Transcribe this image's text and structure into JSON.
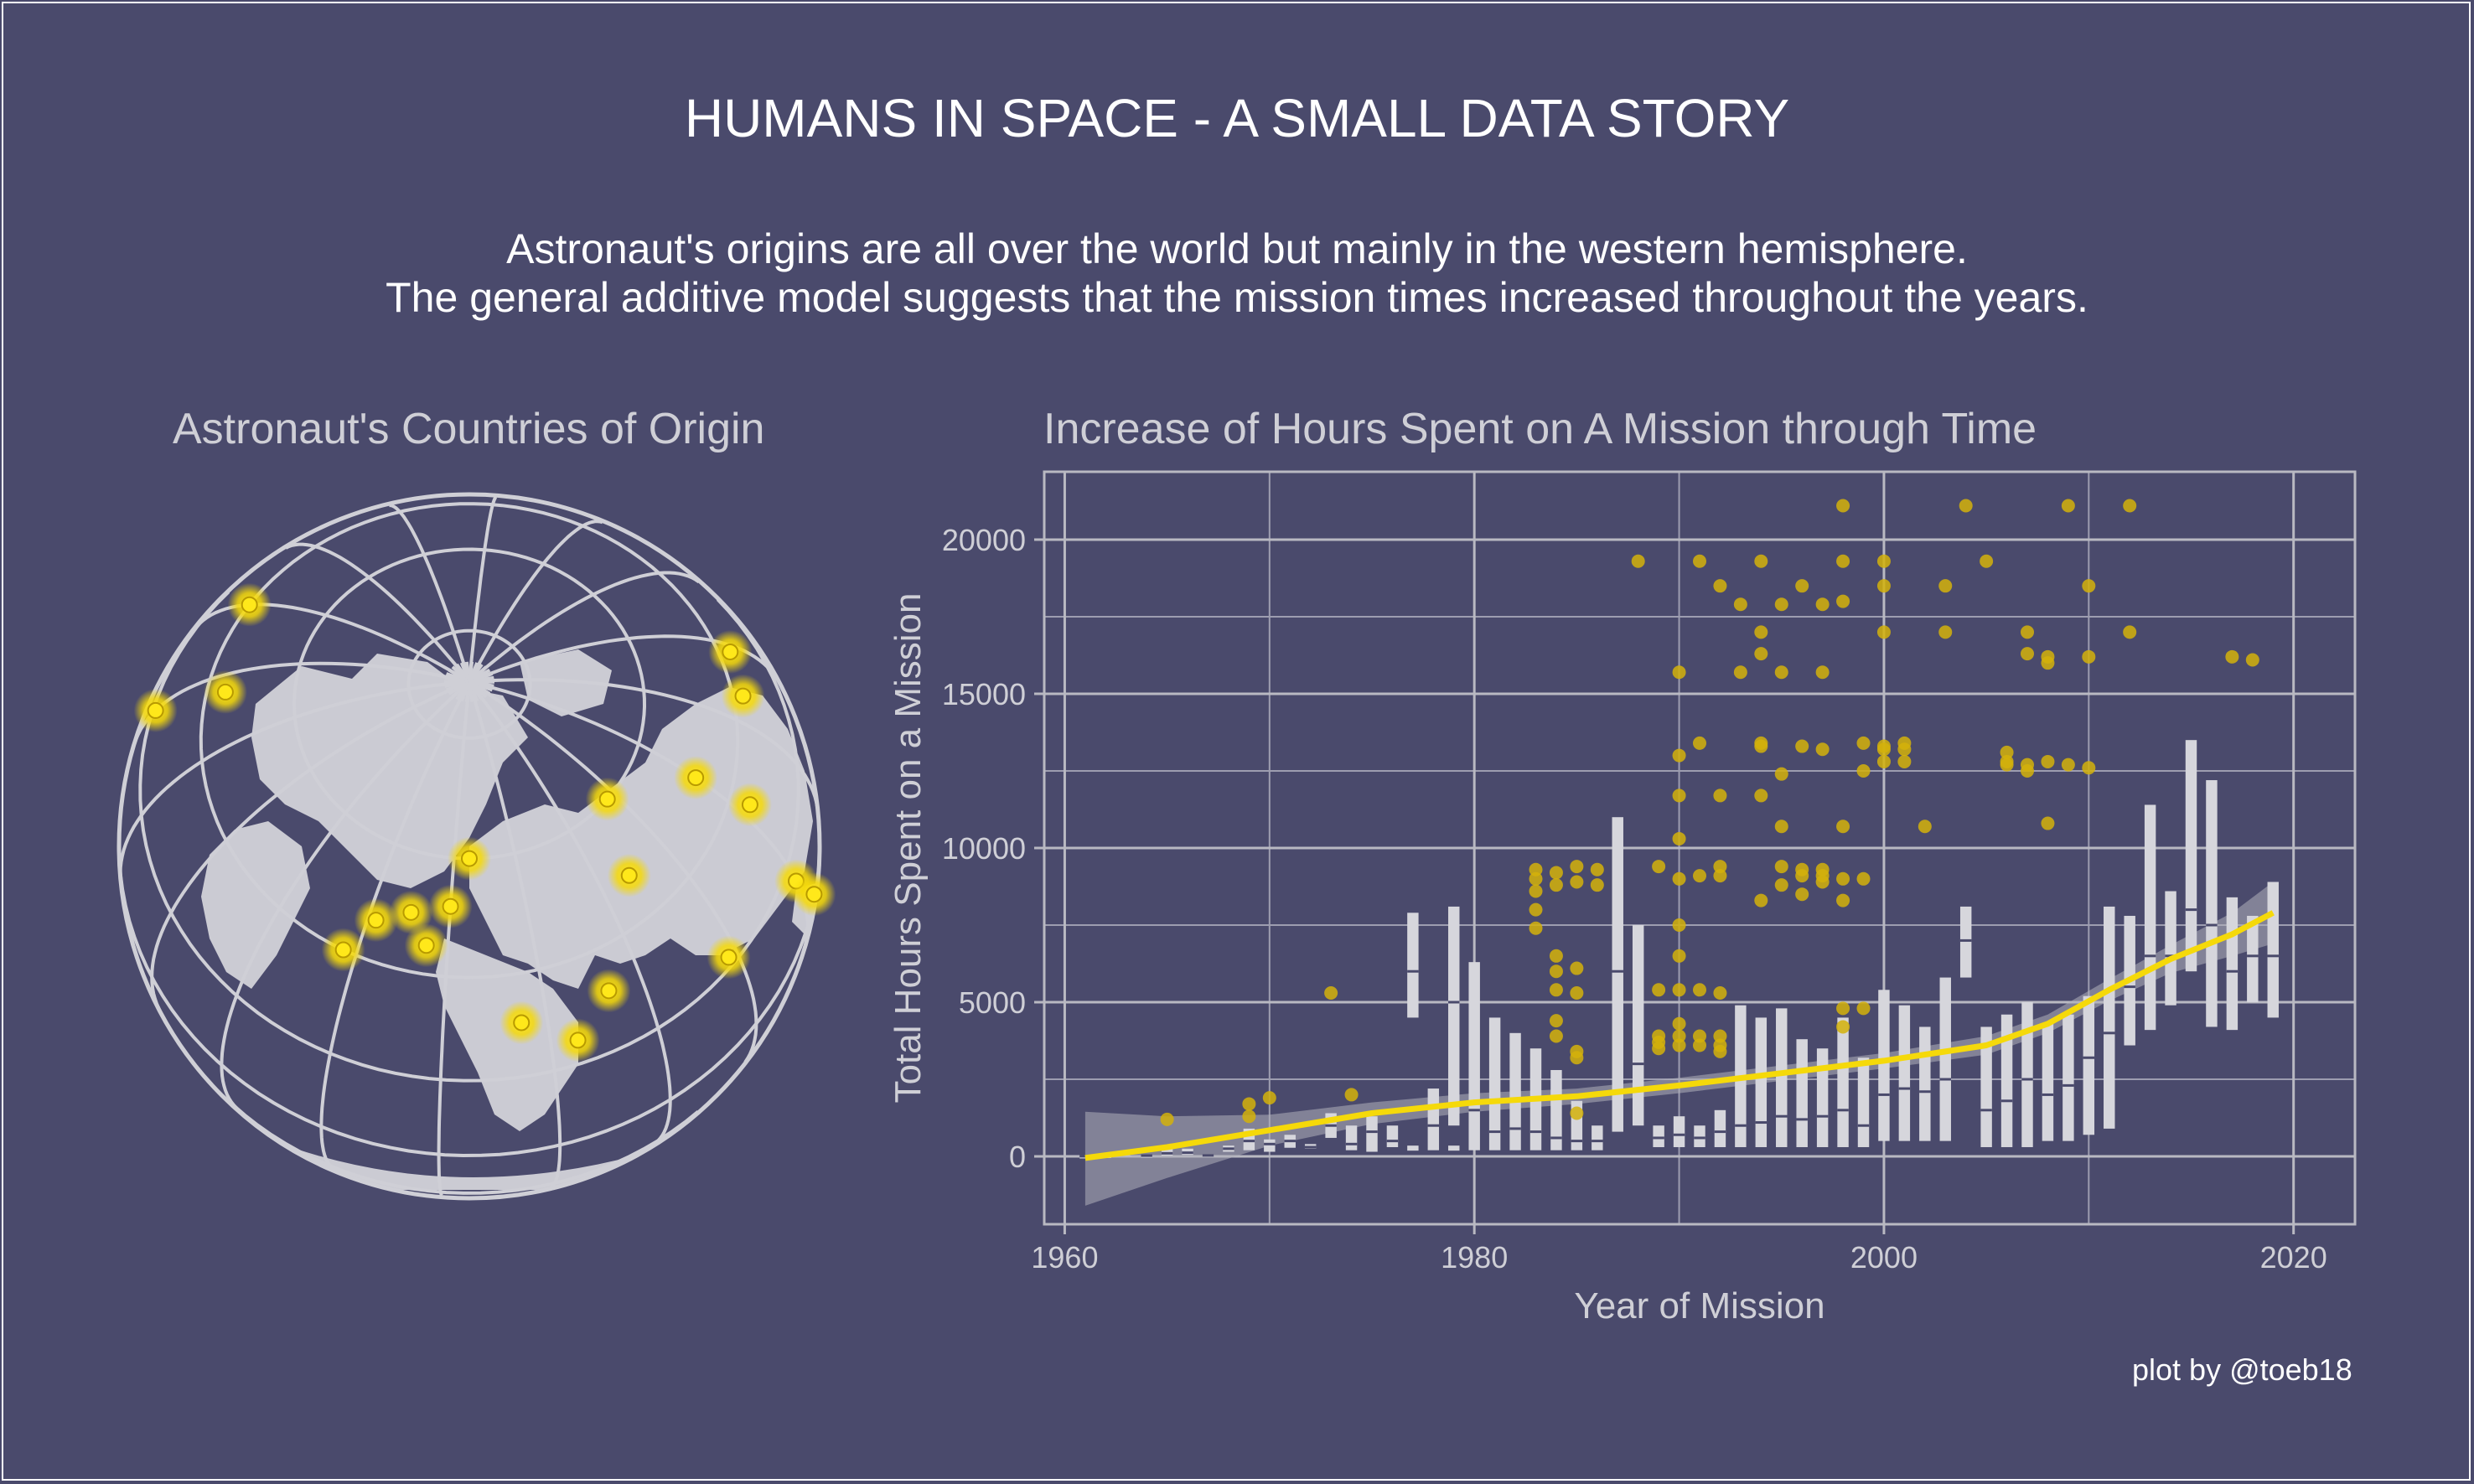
{
  "title": "HUMANS IN SPACE - A SMALL DATA STORY",
  "subtitle_lines": [
    "Astronaut's origins are all over the world but mainly in the western hemisphere.",
    "The general additive model suggests that the mission times increased throughout the years."
  ],
  "credit": "plot by @toeb18",
  "colors": {
    "background": "#4a4a6c",
    "grid": "#b9b9c2",
    "land": "#cbcbd3",
    "highlight": "#f5d90a",
    "text": "#cfcfd6"
  },
  "chart_data": [
    {
      "type": "map",
      "title": "Astronaut's Countries of Origin",
      "projection": "orthographic globe centered on the North Pole",
      "highlight_points": [
        {
          "lon": -100,
          "lat": 40
        },
        {
          "lon": -75,
          "lat": 45
        },
        {
          "lon": -80,
          "lat": 22
        },
        {
          "lon": -50,
          "lat": -10
        },
        {
          "lon": -65,
          "lat": -35
        },
        {
          "lon": 25,
          "lat": -30
        },
        {
          "lon": 10,
          "lat": 50
        },
        {
          "lon": 2,
          "lat": 47
        },
        {
          "lon": 15,
          "lat": 45
        },
        {
          "lon": 20,
          "lat": 52
        },
        {
          "lon": -3,
          "lat": 40
        },
        {
          "lon": 25,
          "lat": 60
        },
        {
          "lon": 35,
          "lat": 31
        },
        {
          "lon": 45,
          "lat": 25
        },
        {
          "lon": 53,
          "lat": 32
        },
        {
          "lon": 68,
          "lat": 48
        },
        {
          "lon": 78,
          "lat": 22
        },
        {
          "lon": 103,
          "lat": 35
        },
        {
          "lon": 127,
          "lat": 37
        },
        {
          "lon": 138,
          "lat": 36
        },
        {
          "lon": 100,
          "lat": 15
        },
        {
          "lon": 100,
          "lat": 48
        },
        {
          "lon": 133,
          "lat": -25
        },
        {
          "lon": 105,
          "lat": 2
        },
        {
          "lon": 77,
          "lat": 60
        }
      ]
    },
    {
      "type": "box",
      "title": "Increase of Hours Spent on A Mission through Time",
      "xlabel": "Year of Mission",
      "ylabel": "Total Hours Spent on a Mission",
      "xlim": [
        1959,
        2023
      ],
      "ylim": [
        -2200,
        22200
      ],
      "x_ticks": [
        1960,
        1980,
        2000,
        2020
      ],
      "y_ticks": [
        0,
        5000,
        10000,
        15000,
        20000
      ],
      "boxes": [
        {
          "x": 1961,
          "q1": 0,
          "q3": 15,
          "med": 5
        },
        {
          "x": 1962,
          "q1": 5,
          "q3": 30,
          "med": 10
        },
        {
          "x": 1963,
          "q1": 20,
          "q3": 120,
          "med": 80
        },
        {
          "x": 1964,
          "q1": 20,
          "q3": 40,
          "med": 25
        },
        {
          "x": 1965,
          "q1": 30,
          "q3": 250,
          "med": 100
        },
        {
          "x": 1966,
          "q1": 50,
          "q3": 250,
          "med": 120
        },
        {
          "x": 1967,
          "q1": 20,
          "q3": 60,
          "med": 30
        },
        {
          "x": 1968,
          "q1": 150,
          "q3": 350,
          "med": 250
        },
        {
          "x": 1969,
          "q1": 200,
          "q3": 900,
          "med": 500
        },
        {
          "x": 1970,
          "q1": 150,
          "q3": 550,
          "med": 400
        },
        {
          "x": 1971,
          "q1": 280,
          "q3": 700,
          "med": 500
        },
        {
          "x": 1972,
          "q1": 250,
          "q3": 400,
          "med": 300
        },
        {
          "x": 1973,
          "q1": 600,
          "q3": 1400,
          "med": 1000
        },
        {
          "x": 1974,
          "q1": 200,
          "q3": 1000,
          "med": 400
        },
        {
          "x": 1975,
          "q1": 150,
          "q3": 1300,
          "med": 800
        },
        {
          "x": 1976,
          "q1": 300,
          "q3": 1000,
          "med": 500
        },
        {
          "x": 1977,
          "q1": 4500,
          "q3": 7900,
          "med": 6000,
          "low": 200
        },
        {
          "x": 1978,
          "q1": 200,
          "q3": 2200,
          "med": 1000
        },
        {
          "x": 1979,
          "q1": 1000,
          "q3": 8100,
          "med": 5000,
          "low": 200
        },
        {
          "x": 1980,
          "q1": 200,
          "q3": 6300,
          "med": 1500
        },
        {
          "x": 1981,
          "q1": 200,
          "q3": 4500,
          "med": 800
        },
        {
          "x": 1982,
          "q1": 200,
          "q3": 4000,
          "med": 900
        },
        {
          "x": 1983,
          "q1": 200,
          "q3": 3500,
          "med": 800
        },
        {
          "x": 1984,
          "q1": 200,
          "q3": 2800,
          "med": 600
        },
        {
          "x": 1985,
          "q1": 200,
          "q3": 1800,
          "med": 500
        },
        {
          "x": 1986,
          "q1": 200,
          "q3": 1000,
          "med": 500
        },
        {
          "x": 1987,
          "q1": 800,
          "q3": 11000,
          "med": 6000
        },
        {
          "x": 1988,
          "q1": 1000,
          "q3": 7500,
          "med": 3000
        },
        {
          "x": 1989,
          "q1": 300,
          "q3": 1000,
          "med": 600
        },
        {
          "x": 1990,
          "q1": 300,
          "q3": 1300,
          "med": 700
        },
        {
          "x": 1991,
          "q1": 300,
          "q3": 1000,
          "med": 600
        },
        {
          "x": 1992,
          "q1": 300,
          "q3": 1500,
          "med": 800
        },
        {
          "x": 1993,
          "q1": 300,
          "q3": 4900,
          "med": 1000
        },
        {
          "x": 1994,
          "q1": 300,
          "q3": 4500,
          "med": 1100
        },
        {
          "x": 1995,
          "q1": 300,
          "q3": 4800,
          "med": 1300
        },
        {
          "x": 1996,
          "q1": 300,
          "q3": 3800,
          "med": 1200
        },
        {
          "x": 1997,
          "q1": 300,
          "q3": 3500,
          "med": 1300
        },
        {
          "x": 1998,
          "q1": 300,
          "q3": 4500,
          "med": 1500
        },
        {
          "x": 1999,
          "q1": 300,
          "q3": 3200,
          "med": 1000
        },
        {
          "x": 2000,
          "q1": 500,
          "q3": 5400,
          "med": 2000
        },
        {
          "x": 2001,
          "q1": 500,
          "q3": 4900,
          "med": 2200
        },
        {
          "x": 2002,
          "q1": 500,
          "q3": 4200,
          "med": 2100
        },
        {
          "x": 2003,
          "q1": 500,
          "q3": 5800,
          "med": 2500
        },
        {
          "x": 2004,
          "q1": 5800,
          "q3": 8100,
          "med": 7000
        },
        {
          "x": 2005,
          "q1": 300,
          "q3": 4200,
          "med": 1500
        },
        {
          "x": 2006,
          "q1": 300,
          "q3": 4600,
          "med": 1800
        },
        {
          "x": 2007,
          "q1": 300,
          "q3": 5000,
          "med": 2500
        },
        {
          "x": 2008,
          "q1": 500,
          "q3": 4300,
          "med": 2000
        },
        {
          "x": 2009,
          "q1": 500,
          "q3": 4600,
          "med": 2300
        },
        {
          "x": 2010,
          "q1": 700,
          "q3": 5200,
          "med": 3200
        },
        {
          "x": 2011,
          "q1": 900,
          "q3": 8100,
          "med": 4000
        },
        {
          "x": 2012,
          "q1": 3600,
          "q3": 7800,
          "med": 5500
        },
        {
          "x": 2013,
          "q1": 4100,
          "q3": 11400,
          "med": 6500
        },
        {
          "x": 2014,
          "q1": 4900,
          "q3": 8600,
          "med": 6500
        },
        {
          "x": 2015,
          "q1": 6000,
          "q3": 13500,
          "med": 8000
        },
        {
          "x": 2016,
          "q1": 4200,
          "q3": 12200,
          "med": 7500
        },
        {
          "x": 2017,
          "q1": 4100,
          "q3": 8400,
          "med": 6000
        },
        {
          "x": 2018,
          "q1": 5000,
          "q3": 7800,
          "med": 6500
        },
        {
          "x": 2019,
          "q1": 4500,
          "q3": 8900,
          "med": 6500
        }
      ],
      "outliers": [
        [
          1965,
          1200
        ],
        [
          1969,
          1700
        ],
        [
          1969,
          1300
        ],
        [
          1970,
          1900
        ],
        [
          1973,
          5300
        ],
        [
          1974,
          2000
        ],
        [
          1983,
          9300
        ],
        [
          1983,
          9000
        ],
        [
          1983,
          8600
        ],
        [
          1983,
          8000
        ],
        [
          1983,
          7400
        ],
        [
          1984,
          9200
        ],
        [
          1984,
          8800
        ],
        [
          1984,
          6500
        ],
        [
          1984,
          6000
        ],
        [
          1984,
          5400
        ],
        [
          1984,
          4400
        ],
        [
          1984,
          3900
        ],
        [
          1985,
          9400
        ],
        [
          1985,
          8900
        ],
        [
          1985,
          6100
        ],
        [
          1985,
          5300
        ],
        [
          1985,
          3400
        ],
        [
          1985,
          3200
        ],
        [
          1985,
          1400
        ],
        [
          1986,
          9300
        ],
        [
          1986,
          8800
        ],
        [
          1988,
          19300
        ],
        [
          1989,
          9400
        ],
        [
          1989,
          5400
        ],
        [
          1989,
          3900
        ],
        [
          1989,
          3700
        ],
        [
          1989,
          3500
        ],
        [
          1990,
          15700
        ],
        [
          1990,
          13000
        ],
        [
          1990,
          11700
        ],
        [
          1990,
          10300
        ],
        [
          1990,
          9000
        ],
        [
          1990,
          7500
        ],
        [
          1990,
          6500
        ],
        [
          1990,
          5400
        ],
        [
          1990,
          4300
        ],
        [
          1990,
          3900
        ],
        [
          1990,
          3600
        ],
        [
          1991,
          19300
        ],
        [
          1991,
          13400
        ],
        [
          1991,
          9100
        ],
        [
          1991,
          5400
        ],
        [
          1991,
          3900
        ],
        [
          1991,
          3600
        ],
        [
          1992,
          18500
        ],
        [
          1992,
          11700
        ],
        [
          1992,
          9400
        ],
        [
          1992,
          9100
        ],
        [
          1992,
          5300
        ],
        [
          1992,
          3900
        ],
        [
          1992,
          3600
        ],
        [
          1992,
          3400
        ],
        [
          1993,
          17900
        ],
        [
          1993,
          15700
        ],
        [
          1994,
          19300
        ],
        [
          1994,
          17000
        ],
        [
          1994,
          16300
        ],
        [
          1994,
          13400
        ],
        [
          1994,
          13300
        ],
        [
          1994,
          11700
        ],
        [
          1994,
          8300
        ],
        [
          1995,
          17900
        ],
        [
          1995,
          15700
        ],
        [
          1995,
          12400
        ],
        [
          1995,
          10700
        ],
        [
          1995,
          9400
        ],
        [
          1995,
          8800
        ],
        [
          1996,
          18500
        ],
        [
          1996,
          13300
        ],
        [
          1996,
          9300
        ],
        [
          1996,
          9100
        ],
        [
          1996,
          8500
        ],
        [
          1997,
          17900
        ],
        [
          1997,
          15700
        ],
        [
          1997,
          13200
        ],
        [
          1997,
          9300
        ],
        [
          1997,
          9100
        ],
        [
          1997,
          8900
        ],
        [
          1998,
          21100
        ],
        [
          1998,
          19300
        ],
        [
          1998,
          18000
        ],
        [
          1998,
          10700
        ],
        [
          1998,
          9000
        ],
        [
          1998,
          8300
        ],
        [
          1998,
          4800
        ],
        [
          1998,
          4200
        ],
        [
          1999,
          13400
        ],
        [
          1999,
          12500
        ],
        [
          1999,
          9000
        ],
        [
          1999,
          4800
        ],
        [
          2000,
          19300
        ],
        [
          2000,
          18500
        ],
        [
          2000,
          17000
        ],
        [
          2000,
          13300
        ],
        [
          2000,
          12800
        ],
        [
          2000,
          13200
        ],
        [
          2001,
          13400
        ],
        [
          2001,
          13200
        ],
        [
          2001,
          12800
        ],
        [
          2002,
          10700
        ],
        [
          2003,
          18500
        ],
        [
          2003,
          17000
        ],
        [
          2004,
          21100
        ],
        [
          2005,
          19300
        ],
        [
          2006,
          13100
        ],
        [
          2006,
          12800
        ],
        [
          2006,
          12700
        ],
        [
          2007,
          17000
        ],
        [
          2007,
          16300
        ],
        [
          2007,
          12700
        ],
        [
          2007,
          12500
        ],
        [
          2008,
          16200
        ],
        [
          2008,
          16000
        ],
        [
          2008,
          12800
        ],
        [
          2008,
          10800
        ],
        [
          2009,
          21100
        ],
        [
          2009,
          12700
        ],
        [
          2010,
          18500
        ],
        [
          2010,
          16200
        ],
        [
          2010,
          12600
        ],
        [
          2012,
          21100
        ],
        [
          2012,
          17000
        ],
        [
          2017,
          16200
        ],
        [
          2018,
          16100
        ]
      ],
      "gam_fit": [
        [
          1961,
          -50
        ],
        [
          1965,
          300
        ],
        [
          1970,
          850
        ],
        [
          1975,
          1400
        ],
        [
          1980,
          1750
        ],
        [
          1985,
          1950
        ],
        [
          1990,
          2300
        ],
        [
          1995,
          2700
        ],
        [
          2000,
          3100
        ],
        [
          2005,
          3600
        ],
        [
          2008,
          4300
        ],
        [
          2011,
          5400
        ],
        [
          2014,
          6400
        ],
        [
          2017,
          7200
        ],
        [
          2019,
          7900
        ]
      ],
      "confidence_band": [
        [
          1961,
          -1600,
          1450
        ],
        [
          1965,
          -700,
          1300
        ],
        [
          1970,
          350,
          1350
        ],
        [
          1975,
          1050,
          1750
        ],
        [
          1980,
          1450,
          2050
        ],
        [
          1985,
          1700,
          2200
        ],
        [
          1990,
          2050,
          2550
        ],
        [
          1995,
          2450,
          2950
        ],
        [
          2000,
          2850,
          3350
        ],
        [
          2005,
          3300,
          3900
        ],
        [
          2008,
          4000,
          4600
        ],
        [
          2011,
          5050,
          5750
        ],
        [
          2014,
          5950,
          6850
        ],
        [
          2017,
          6500,
          7900
        ],
        [
          2019,
          6900,
          8900
        ]
      ]
    }
  ]
}
